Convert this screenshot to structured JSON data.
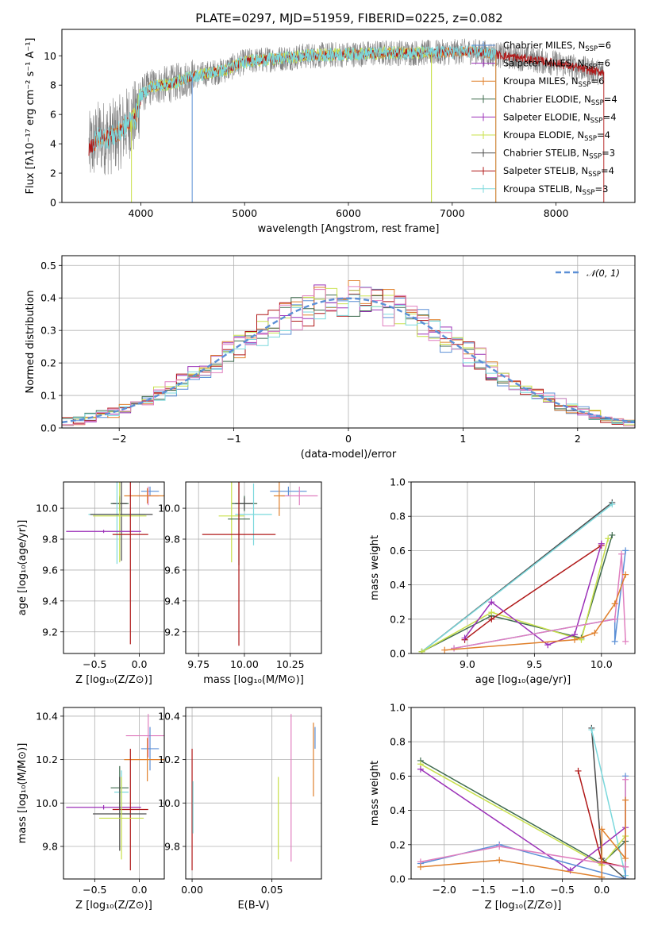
{
  "figure": {
    "title": "PLATE=0297, MJD=51959, FIBERID=0225, z=0.082",
    "colors": {
      "Chabrier MILES": "#5b8fd6",
      "Salpeter MILES": "#9b30b8",
      "Kroupa MILES": "#e0802c",
      "Chabrier ELODIE": "#3f6b4f",
      "Salpeter ELODIE": "#9b30b8",
      "Kroupa ELODIE": "#c8e04a",
      "Chabrier STELIB": "#4a4a4a",
      "Salpeter STELIB": "#b01818",
      "Kroupa STELIB": "#7ad8dc",
      "pink": "#e07fbf",
      "normal": "#5b8fd6"
    }
  },
  "chart_data": [
    {
      "id": "spectrum",
      "type": "line",
      "xlabel": "wavelength [Angstrom, rest frame]",
      "ylabel": "Flux [fλ10⁻¹⁷ erg cm⁻² s⁻¹ A⁻¹]",
      "xlim": [
        3240,
        8760
      ],
      "ylim": [
        0,
        11.8
      ],
      "xticks": [
        4000,
        5000,
        6000,
        7000,
        8000
      ],
      "yticks": [
        0,
        2,
        4,
        6,
        8,
        10
      ],
      "grid": false,
      "legend_placement": "right",
      "legend": [
        {
          "label": "Chabrier MILES, N",
          "sub": "SSP",
          "tail": "=6",
          "color": "#5b8fd6"
        },
        {
          "label": "Salpeter MILES, N",
          "sub": "SSP",
          "tail": "=6",
          "color": "#9b30b8"
        },
        {
          "label": "Kroupa MILES, N",
          "sub": "SSP",
          "tail": "=6",
          "color": "#e0802c"
        },
        {
          "label": "Chabrier ELODIE, N",
          "sub": "SSP",
          "tail": "=4",
          "color": "#3f6b4f"
        },
        {
          "label": "Salpeter ELODIE, N",
          "sub": "SSP",
          "tail": "=4",
          "color": "#9b30b8"
        },
        {
          "label": "Kroupa ELODIE, N",
          "sub": "SSP",
          "tail": "=4",
          "color": "#c8e04a"
        },
        {
          "label": "Chabrier STELIB, N",
          "sub": "SSP",
          "tail": "=3",
          "color": "#4a4a4a"
        },
        {
          "label": "Salpeter STELIB, N",
          "sub": "SSP",
          "tail": "=4",
          "color": "#b01818"
        },
        {
          "label": "Kroupa STELIB, N",
          "sub": "SSP",
          "tail": "=3",
          "color": "#7ad8dc"
        }
      ],
      "continuum": [
        [
          3500,
          3.6
        ],
        [
          3600,
          4.5
        ],
        [
          3700,
          4.4
        ],
        [
          3800,
          4.8
        ],
        [
          3900,
          5.6
        ],
        [
          3950,
          5.8
        ],
        [
          4000,
          7.3
        ],
        [
          4100,
          7.9
        ],
        [
          4300,
          8.1
        ],
        [
          4500,
          8.6
        ],
        [
          4800,
          9.0
        ],
        [
          5000,
          9.6
        ],
        [
          5300,
          9.8
        ],
        [
          5600,
          10.0
        ],
        [
          6000,
          10.1
        ],
        [
          6400,
          10.2
        ],
        [
          6800,
          10.2
        ],
        [
          7200,
          10.3
        ],
        [
          7600,
          9.9
        ],
        [
          8000,
          9.5
        ],
        [
          8400,
          8.9
        ]
      ],
      "noise_wavelength_range": [
        3500,
        8460
      ],
      "model_wavelength_ranges": {
        "MILES": [
          3540,
          7420
        ],
        "ELODIE": [
          3900,
          6800
        ],
        "STELIB": [
          3500,
          8460
        ]
      }
    },
    {
      "id": "residuals",
      "type": "histogram",
      "xlabel": "(data-model)/error",
      "ylabel": "Normed distribution",
      "xlim": [
        -2.5,
        2.5
      ],
      "ylim": [
        0,
        0.53
      ],
      "xticks": [
        -2,
        -1,
        0,
        1,
        2
      ],
      "yticks": [
        0.0,
        0.1,
        0.2,
        0.3,
        0.4,
        0.5
      ],
      "grid": true,
      "legend_placement": "top-right",
      "normal_label": "𝒩(0, 1)",
      "bin_width": 0.1,
      "series_colors": [
        "#5b8fd6",
        "#9b30b8",
        "#e0802c",
        "#3f6b4f",
        "#c8e04a",
        "#b01818",
        "#7ad8dc",
        "#e07fbf"
      ]
    },
    {
      "id": "age_vs_Z",
      "type": "errorbar",
      "xlabel": "Z [log₁₀(Z/Z⊙)]",
      "ylabel": "age  [log₁₀(age/yr)]",
      "xlim": [
        -0.85,
        0.28
      ],
      "ylim": [
        9.06,
        10.17
      ],
      "xticks": [
        -0.5,
        0.0
      ],
      "yticks": [
        9.2,
        9.4,
        9.6,
        9.8,
        10.0
      ],
      "grid": true,
      "points": [
        {
          "x": 0.12,
          "y": 10.11,
          "xerr": 0.1,
          "yerr": 0.03,
          "color": "#5b8fd6"
        },
        {
          "x": 0.1,
          "y": 10.08,
          "xerr": 0.12,
          "yerr": 0.06,
          "color": "#e07fbf"
        },
        {
          "x": 0.09,
          "y": 10.08,
          "xerr": 0.26,
          "yerr": 0.05,
          "color": "#e0802c"
        },
        {
          "x": -0.22,
          "y": 10.03,
          "xerr": 0.1,
          "yerr": 0.05,
          "color": "#3f6b4f"
        },
        {
          "x": -0.22,
          "y": 10.03,
          "xerr": 0.08,
          "yerr": 0.04,
          "color": "#4a4a4a"
        },
        {
          "x": -0.25,
          "y": 9.96,
          "xerr": 0.32,
          "yerr": 0.32,
          "color": "#7ad8dc"
        },
        {
          "x": -0.2,
          "y": 9.96,
          "xerr": 0.35,
          "yerr": 0.3,
          "color": "#4a4a4a"
        },
        {
          "x": -0.22,
          "y": 9.95,
          "xerr": 0.3,
          "yerr": 0.3,
          "color": "#c8e04a"
        },
        {
          "x": -0.4,
          "y": 9.85,
          "xerr": 0.42,
          "yerr": 0.01,
          "color": "#9b30b8"
        },
        {
          "x": -0.1,
          "y": 9.83,
          "xerr": 0.2,
          "yerr": 0.71,
          "color": "#b01818"
        }
      ]
    },
    {
      "id": "age_vs_mass",
      "type": "errorbar",
      "xlabel": "mass [log₁₀(M/M⊙)]",
      "ylabel": "",
      "xlim": [
        9.68,
        10.42
      ],
      "ylim": [
        9.06,
        10.17
      ],
      "xticks": [
        9.75,
        10.0,
        10.25
      ],
      "yticks": [
        9.2,
        9.4,
        9.6,
        9.8,
        10.0
      ],
      "grid": true,
      "points": [
        {
          "x": 10.24,
          "y": 10.11,
          "xerr": 0.1,
          "yerr": 0.03,
          "color": "#5b8fd6"
        },
        {
          "x": 10.3,
          "y": 10.08,
          "xerr": 0.1,
          "yerr": 0.06,
          "color": "#e07fbf"
        },
        {
          "x": 10.19,
          "y": 10.08,
          "xerr": 0.03,
          "yerr": 0.13,
          "color": "#e0802c"
        },
        {
          "x": 10.0,
          "y": 10.03,
          "xerr": 0.07,
          "yerr": 0.05,
          "color": "#3f6b4f"
        },
        {
          "x": 10.0,
          "y": 10.03,
          "xerr": 0.05,
          "yerr": 0.04,
          "color": "#4a4a4a"
        },
        {
          "x": 10.05,
          "y": 9.96,
          "xerr": 0.1,
          "yerr": 0.2,
          "color": "#7ad8dc"
        },
        {
          "x": 9.93,
          "y": 9.95,
          "xerr": 0.07,
          "yerr": 0.3,
          "color": "#c8e04a"
        },
        {
          "x": 9.97,
          "y": 9.93,
          "xerr": 0.06,
          "yerr": 0.3,
          "color": "#3f6b4f"
        },
        {
          "x": 9.97,
          "y": 9.83,
          "xerr": 0.2,
          "yerr": 0.72,
          "color": "#b01818"
        }
      ]
    },
    {
      "id": "weight_vs_age",
      "type": "line",
      "xlabel": "age  [log₁₀(age/yr)]",
      "ylabel": "mass weight",
      "xlim": [
        8.58,
        10.25
      ],
      "ylim": [
        0,
        1.0
      ],
      "xticks": [
        9.0,
        9.5,
        10.0
      ],
      "yticks": [
        0.0,
        0.2,
        0.4,
        0.6,
        0.8,
        1.0
      ],
      "grid": true,
      "series": [
        {
          "color": "#4a4a4a",
          "points": [
            [
              8.66,
              0.01
            ],
            [
              10.08,
              0.88
            ]
          ]
        },
        {
          "color": "#7ad8dc",
          "points": [
            [
              8.66,
              0.01
            ],
            [
              10.08,
              0.87
            ]
          ]
        },
        {
          "color": "#3f6b4f",
          "points": [
            [
              8.66,
              0.01
            ],
            [
              9.18,
              0.22
            ],
            [
              9.85,
              0.09
            ],
            [
              10.08,
              0.69
            ]
          ]
        },
        {
          "color": "#c8e04a",
          "points": [
            [
              8.66,
              0.01
            ],
            [
              9.18,
              0.24
            ],
            [
              9.85,
              0.08
            ],
            [
              10.05,
              0.67
            ]
          ]
        },
        {
          "color": "#b01818",
          "points": [
            [
              8.98,
              0.08
            ],
            [
              9.18,
              0.2
            ],
            [
              10.0,
              0.63
            ]
          ]
        },
        {
          "color": "#9b30b8",
          "points": [
            [
              8.98,
              0.09
            ],
            [
              9.18,
              0.3
            ],
            [
              9.6,
              0.05
            ],
            [
              9.8,
              0.11
            ],
            [
              10.0,
              0.64
            ]
          ]
        },
        {
          "color": "#5b8fd6",
          "points": [
            [
              8.9,
              0.03
            ],
            [
              10.1,
              0.2
            ],
            [
              10.1,
              0.07
            ],
            [
              10.18,
              0.6
            ]
          ]
        },
        {
          "color": "#e07fbf",
          "points": [
            [
              8.9,
              0.03
            ],
            [
              10.1,
              0.2
            ],
            [
              10.15,
              0.58
            ],
            [
              10.18,
              0.07
            ]
          ]
        },
        {
          "color": "#e0802c",
          "points": [
            [
              8.83,
              0.02
            ],
            [
              9.8,
              0.08
            ],
            [
              9.95,
              0.12
            ],
            [
              10.1,
              0.29
            ],
            [
              10.18,
              0.46
            ]
          ]
        }
      ]
    },
    {
      "id": "mass_vs_Z",
      "type": "errorbar",
      "xlabel": "Z [log₁₀(Z/Z⊙)]",
      "ylabel": "mass [log₁₀(M/M⊙)]",
      "xlim": [
        -0.85,
        0.28
      ],
      "ylim": [
        9.65,
        10.44
      ],
      "xticks": [
        -0.5,
        0.0
      ],
      "yticks": [
        9.8,
        10.0,
        10.2,
        10.4
      ],
      "grid": true,
      "points": [
        {
          "x": 0.1,
          "y": 10.31,
          "xerr": 0.25,
          "yerr": 0.1,
          "color": "#e07fbf"
        },
        {
          "x": 0.12,
          "y": 10.25,
          "xerr": 0.1,
          "yerr": 0.1,
          "color": "#5b8fd6"
        },
        {
          "x": 0.09,
          "y": 10.2,
          "xerr": 0.26,
          "yerr": 0.1,
          "color": "#e0802c"
        },
        {
          "x": -0.22,
          "y": 10.07,
          "xerr": 0.1,
          "yerr": 0.1,
          "color": "#3f6b4f"
        },
        {
          "x": -0.2,
          "y": 10.05,
          "xerr": 0.08,
          "yerr": 0.1,
          "color": "#7ad8dc"
        },
        {
          "x": -0.4,
          "y": 9.98,
          "xerr": 0.42,
          "yerr": 0.01,
          "color": "#9b30b8"
        },
        {
          "x": -0.1,
          "y": 9.97,
          "xerr": 0.2,
          "yerr": 0.28,
          "color": "#b01818"
        },
        {
          "x": -0.22,
          "y": 9.95,
          "xerr": 0.3,
          "yerr": 0.17,
          "color": "#4a4a4a"
        },
        {
          "x": -0.2,
          "y": 9.93,
          "xerr": 0.25,
          "yerr": 0.19,
          "color": "#c8e04a"
        }
      ]
    },
    {
      "id": "mass_vs_EBV",
      "type": "errorbar",
      "xlabel": "E(B-V)",
      "ylabel": "",
      "xlim": [
        -0.004,
        0.081
      ],
      "ylim": [
        9.65,
        10.44
      ],
      "xticks": [
        0.0,
        0.05
      ],
      "yticks": [
        9.8,
        10.0,
        10.2,
        10.4
      ],
      "grid": true,
      "points": [
        {
          "x": 0.0,
          "y": 9.97,
          "xerr": 0,
          "yerr": 0.28,
          "color": "#b01818"
        },
        {
          "x": 0.0005,
          "y": 9.98,
          "xerr": 0,
          "yerr": 0.12,
          "color": "#7ad8dc"
        },
        {
          "x": 0.054,
          "y": 9.93,
          "xerr": 0,
          "yerr": 0.19,
          "color": "#c8e04a"
        },
        {
          "x": 0.062,
          "y": 10.07,
          "xerr": 0,
          "yerr": 0.34,
          "color": "#e07fbf"
        },
        {
          "x": 0.076,
          "y": 10.2,
          "xerr": 0,
          "yerr": 0.17,
          "color": "#e0802c"
        },
        {
          "x": 0.077,
          "y": 10.3,
          "xerr": 0,
          "yerr": 0.05,
          "color": "#5b8fd6"
        }
      ]
    },
    {
      "id": "weight_vs_Z",
      "type": "line",
      "xlabel": "Z [log₁₀(Z/Z⊙)]",
      "ylabel": "mass weight",
      "xlim": [
        -2.42,
        0.42
      ],
      "ylim": [
        0,
        1.0
      ],
      "xticks": [
        -2.0,
        -1.5,
        -1.0,
        -0.5,
        0.0
      ],
      "yticks": [
        0.0,
        0.2,
        0.4,
        0.6,
        0.8,
        1.0
      ],
      "grid": true,
      "series": [
        {
          "color": "#4a4a4a",
          "points": [
            [
              -0.13,
              0.88
            ],
            [
              0.0,
              0.12
            ],
            [
              0.3,
              0.0
            ]
          ]
        },
        {
          "color": "#7ad8dc",
          "points": [
            [
              -0.13,
              0.87
            ],
            [
              0.3,
              0.02
            ]
          ]
        },
        {
          "color": "#3f6b4f",
          "points": [
            [
              -2.3,
              0.69
            ],
            [
              0.0,
              0.09
            ],
            [
              0.3,
              0.22
            ]
          ]
        },
        {
          "color": "#c8e04a",
          "points": [
            [
              -2.3,
              0.67
            ],
            [
              0.0,
              0.08
            ],
            [
              0.3,
              0.25
            ]
          ]
        },
        {
          "color": "#b01818",
          "points": [
            [
              -0.3,
              0.63
            ],
            [
              0.0,
              0.1
            ],
            [
              0.3,
              0.07
            ]
          ]
        },
        {
          "color": "#9b30b8",
          "points": [
            [
              -2.3,
              0.64
            ],
            [
              -0.4,
              0.05
            ],
            [
              0.3,
              0.3
            ]
          ]
        },
        {
          "color": "#5b8fd6",
          "points": [
            [
              -2.3,
              0.09
            ],
            [
              -1.3,
              0.2
            ],
            [
              0.3,
              0.0
            ],
            [
              0.3,
              0.6
            ]
          ]
        },
        {
          "color": "#e07fbf",
          "points": [
            [
              -2.3,
              0.1
            ],
            [
              -1.3,
              0.19
            ],
            [
              0.3,
              0.07
            ],
            [
              0.3,
              0.58
            ]
          ]
        },
        {
          "color": "#e0802c",
          "points": [
            [
              -2.3,
              0.07
            ],
            [
              -1.3,
              0.11
            ],
            [
              0.0,
              0.01
            ],
            [
              0.0,
              0.29
            ],
            [
              0.3,
              0.12
            ],
            [
              0.3,
              0.46
            ]
          ]
        }
      ]
    }
  ]
}
